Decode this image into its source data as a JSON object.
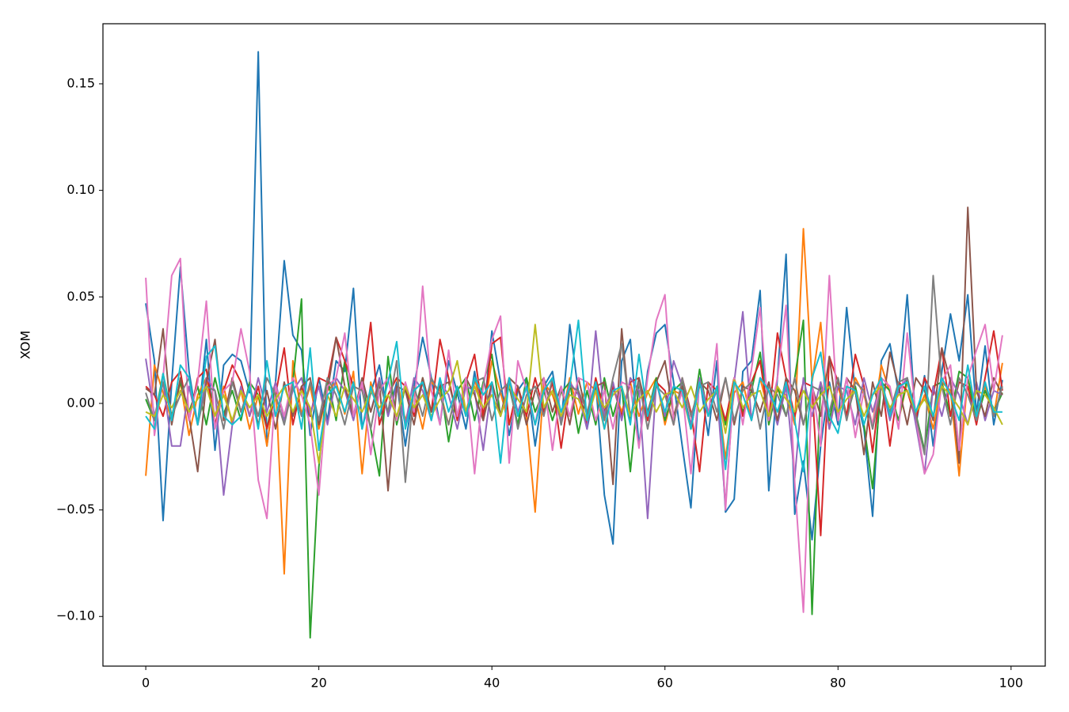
{
  "chart_data": {
    "type": "line",
    "y_label": "XOM",
    "xlim": [
      -4.95,
      103.95
    ],
    "ylim": [
      -0.1233,
      0.1782
    ],
    "xticks": [
      0,
      20,
      40,
      60,
      80,
      100
    ],
    "yticks": [
      {
        "value": -0.1,
        "label": "−0.10"
      },
      {
        "value": -0.05,
        "label": "−0.05"
      },
      {
        "value": 0,
        "label": "0.00"
      },
      0.05,
      {
        "value": 0.1,
        "label": "0.10"
      },
      0.15
    ],
    "x": [
      0,
      1,
      2,
      3,
      4,
      5,
      6,
      7,
      8,
      9,
      10,
      11,
      12,
      13,
      14,
      15,
      16,
      17,
      18,
      19,
      20,
      21,
      22,
      23,
      24,
      25,
      26,
      27,
      28,
      29,
      30,
      31,
      32,
      33,
      34,
      35,
      36,
      37,
      38,
      39,
      40,
      41,
      42,
      43,
      44,
      45,
      46,
      47,
      48,
      49,
      50,
      51,
      52,
      53,
      54,
      55,
      56,
      57,
      58,
      59,
      60,
      61,
      62,
      63,
      64,
      65,
      66,
      67,
      68,
      69,
      70,
      71,
      72,
      73,
      74,
      75,
      76,
      77,
      78,
      79,
      80,
      81,
      82,
      83,
      84,
      85,
      86,
      87,
      88,
      89,
      90,
      91,
      92,
      93,
      94,
      95,
      96,
      97,
      98,
      99
    ],
    "series": [
      {
        "color": "#1f77b4",
        "values": [
          0.047,
          0.02,
          -0.055,
          0.01,
          0.064,
          0.015,
          -0.01,
          0.03,
          -0.022,
          0.018,
          0.023,
          0.02,
          0.005,
          0.165,
          -0.02,
          0.01,
          0.067,
          0.032,
          0.025,
          -0.015,
          0.012,
          -0.008,
          0.02,
          0.015,
          0.054,
          -0.012,
          0.005,
          0.018,
          -0.006,
          0.01,
          -0.02,
          0.008,
          0.031,
          0.012,
          -0.01,
          0.02,
          0.005,
          -0.012,
          0.015,
          -0.008,
          0.034,
          0.01,
          -0.015,
          0.006,
          0.012,
          -0.02,
          0.008,
          0.015,
          -0.01,
          0.037,
          0.005,
          -0.012,
          0.01,
          -0.043,
          -0.066,
          0.02,
          0.03,
          -0.02,
          0.015,
          0.033,
          0.037,
          0.01,
          -0.02,
          -0.049,
          0.012,
          -0.015,
          0.02,
          -0.051,
          -0.045,
          0.015,
          0.02,
          0.053,
          -0.041,
          0.012,
          0.07,
          -0.052,
          -0.027,
          -0.064,
          -0.02,
          0.01,
          -0.01,
          0.045,
          0.005,
          -0.012,
          -0.053,
          0.02,
          0.028,
          0.005,
          0.051,
          -0.01,
          0.013,
          -0.02,
          0.015,
          0.042,
          0.02,
          0.051,
          -0.005,
          0.027,
          -0.01,
          0.011
        ]
      },
      {
        "color": "#ff7f0e",
        "values": [
          -0.034,
          0.018,
          0.005,
          -0.008,
          0.01,
          -0.015,
          0.004,
          0.012,
          -0.006,
          0.008,
          -0.01,
          0.006,
          -0.012,
          0.004,
          -0.02,
          0.01,
          -0.08,
          0.02,
          -0.005,
          0.008,
          -0.012,
          0.006,
          0.01,
          -0.005,
          0.015,
          -0.033,
          0.01,
          -0.006,
          0.004,
          0.012,
          -0.008,
          0.005,
          -0.012,
          0.01,
          0.006,
          -0.01,
          0.008,
          -0.004,
          0.012,
          -0.006,
          0.02,
          0.005,
          -0.01,
          0.008,
          -0.006,
          -0.051,
          0.01,
          0.004,
          -0.008,
          0.012,
          -0.005,
          0.01,
          0.006,
          -0.012,
          0.008,
          -0.004,
          0.01,
          -0.006,
          0.005,
          0.012,
          -0.01,
          0.006,
          0.004,
          -0.012,
          0.01,
          -0.006,
          0.008,
          -0.026,
          0.005,
          0.01,
          -0.008,
          0.012,
          -0.005,
          0.006,
          0.004,
          -0.01,
          0.082,
          0.01,
          0.038,
          -0.012,
          0.008,
          -0.006,
          0.012,
          0.004,
          -0.01,
          0.018,
          0.005,
          -0.008,
          0.01,
          -0.006,
          0.004,
          -0.012,
          0.01,
          0.006,
          -0.034,
          0.012,
          -0.005,
          0.008,
          -0.006,
          0.019
        ]
      },
      {
        "color": "#2ca02c",
        "values": [
          0.002,
          -0.008,
          0.014,
          -0.006,
          0.01,
          -0.004,
          0.008,
          -0.01,
          0.012,
          -0.005,
          0.006,
          -0.008,
          0.01,
          0.004,
          -0.012,
          0.008,
          -0.006,
          0.01,
          0.049,
          -0.11,
          -0.03,
          0.012,
          -0.008,
          0.02,
          -0.006,
          0.01,
          -0.012,
          -0.034,
          0.022,
          -0.01,
          0.008,
          -0.006,
          0.012,
          -0.004,
          0.01,
          -0.018,
          0.006,
          0.012,
          -0.008,
          0.01,
          0.023,
          -0.006,
          0.008,
          -0.01,
          0.012,
          -0.004,
          0.006,
          -0.008,
          0.005,
          0.01,
          -0.014,
          0.006,
          -0.01,
          0.012,
          -0.006,
          0.008,
          -0.032,
          0.01,
          -0.005,
          0.012,
          -0.008,
          0.006,
          0.01,
          -0.012,
          0.016,
          -0.006,
          0.008,
          -0.01,
          0.012,
          -0.004,
          0.006,
          0.024,
          -0.01,
          0.008,
          -0.006,
          0.012,
          0.039,
          -0.099,
          0.01,
          -0.008,
          0.012,
          -0.006,
          0.008,
          -0.01,
          -0.04,
          0.01,
          0.006,
          -0.008,
          0.012,
          -0.005,
          -0.022,
          0.008,
          0.01,
          -0.006,
          0.015,
          0.012,
          -0.008,
          0.006,
          -0.004,
          0.005
        ]
      },
      {
        "color": "#d62728",
        "values": [
          0.008,
          0.004,
          -0.006,
          0.01,
          0.015,
          -0.008,
          0.012,
          0.016,
          -0.01,
          0.006,
          0.018,
          0.01,
          -0.006,
          0.008,
          -0.012,
          0.004,
          0.026,
          -0.01,
          0.008,
          -0.006,
          0.012,
          0.01,
          0.031,
          0.02,
          0.008,
          0.006,
          0.038,
          -0.01,
          0.004,
          0.012,
          0.008,
          -0.006,
          0.01,
          -0.004,
          0.03,
          0.012,
          -0.008,
          0.01,
          0.023,
          -0.006,
          0.028,
          0.031,
          -0.01,
          0.008,
          -0.006,
          0.012,
          -0.004,
          0.01,
          -0.021,
          0.008,
          0.006,
          -0.01,
          0.012,
          -0.004,
          0.008,
          -0.006,
          0.01,
          0.012,
          -0.008,
          0.01,
          0.006,
          -0.01,
          0.012,
          -0.004,
          -0.032,
          0.01,
          0.006,
          -0.008,
          0.012,
          -0.006,
          0.01,
          0.02,
          -0.008,
          0.033,
          0.012,
          -0.006,
          0.01,
          0.008,
          -0.062,
          0.022,
          0.01,
          -0.006,
          0.023,
          0.008,
          -0.023,
          0.012,
          -0.02,
          0.01,
          0.006,
          -0.008,
          0.012,
          0.004,
          0.026,
          -0.006,
          0.01,
          0.008,
          -0.01,
          0.012,
          0.034,
          0.006
        ]
      },
      {
        "color": "#9467bd",
        "values": [
          0.021,
          -0.006,
          0.01,
          -0.02,
          -0.02,
          0.008,
          -0.01,
          0.012,
          0.006,
          -0.043,
          -0.01,
          0.008,
          -0.006,
          0.012,
          -0.004,
          0.01,
          -0.008,
          0.006,
          0.012,
          -0.005,
          0.008,
          -0.01,
          0.012,
          0.006,
          -0.008,
          0.01,
          -0.004,
          0.012,
          -0.006,
          0.008,
          -0.01,
          0.012,
          0.006,
          -0.008,
          0.01,
          0.004,
          -0.012,
          0.008,
          0.006,
          -0.022,
          0.01,
          -0.006,
          0.012,
          -0.004,
          0.008,
          -0.01,
          0.006,
          0.012,
          -0.008,
          0.01,
          0.004,
          -0.012,
          0.034,
          -0.006,
          0.01,
          -0.008,
          0.012,
          0.006,
          -0.054,
          0.01,
          -0.006,
          0.02,
          0.008,
          -0.01,
          0.012,
          -0.004,
          0.006,
          -0.048,
          0.01,
          0.043,
          -0.008,
          0.012,
          0.006,
          -0.01,
          0.008,
          -0.035,
          0.012,
          -0.006,
          0.01,
          -0.012,
          0.008,
          0.006,
          -0.01,
          0.012,
          -0.004,
          0.01,
          -0.008,
          0.006,
          0.012,
          -0.01,
          -0.033,
          0.008,
          -0.006,
          0.012,
          0.004,
          -0.01,
          0.01,
          -0.008,
          0.006,
          0.004
        ]
      },
      {
        "color": "#8c564b",
        "values": [
          0.007,
          0.004,
          0.035,
          -0.01,
          0.012,
          -0.006,
          -0.032,
          0.01,
          0.03,
          -0.008,
          0.012,
          -0.004,
          0.008,
          -0.01,
          0.006,
          -0.012,
          0.01,
          -0.006,
          0.008,
          0.012,
          -0.01,
          0.006,
          0.031,
          0.008,
          -0.006,
          0.012,
          -0.004,
          0.01,
          -0.041,
          0.008,
          0.006,
          -0.01,
          0.012,
          -0.004,
          0.008,
          0.01,
          -0.006,
          0.012,
          0.004,
          -0.008,
          0.01,
          -0.006,
          0.012,
          0.008,
          -0.01,
          0.006,
          0.012,
          -0.004,
          0.008,
          -0.01,
          0.012,
          -0.006,
          0.008,
          0.01,
          -0.038,
          0.035,
          -0.008,
          0.012,
          -0.004,
          0.01,
          0.02,
          -0.006,
          0.008,
          -0.012,
          0.01,
          0.006,
          -0.008,
          0.012,
          -0.01,
          0.008,
          0.006,
          -0.004,
          0.01,
          -0.008,
          0.012,
          0.006,
          -0.01,
          0.008,
          -0.006,
          0.022,
          -0.008,
          0.012,
          0.006,
          -0.024,
          0.01,
          -0.006,
          0.024,
          0.008,
          -0.01,
          0.012,
          0.006,
          -0.008,
          0.026,
          0.01,
          -0.028,
          0.092,
          0.006,
          -0.006,
          0.012,
          0.004
        ]
      },
      {
        "color": "#e377c2",
        "values": [
          0.059,
          -0.015,
          0.012,
          0.06,
          0.068,
          -0.008,
          0.01,
          0.048,
          -0.012,
          0.006,
          0.01,
          0.035,
          0.015,
          -0.036,
          -0.054,
          0.008,
          -0.006,
          0.012,
          0.004,
          -0.01,
          -0.043,
          0.008,
          0.012,
          0.033,
          -0.006,
          0.01,
          -0.024,
          0.006,
          0.012,
          -0.008,
          0.01,
          -0.004,
          0.055,
          0.006,
          -0.01,
          0.025,
          -0.006,
          0.012,
          -0.033,
          0.008,
          0.03,
          0.041,
          -0.028,
          0.02,
          0.006,
          -0.01,
          0.012,
          -0.022,
          0.008,
          -0.006,
          0.012,
          0.01,
          -0.008,
          0.006,
          -0.012,
          0.01,
          0.008,
          -0.021,
          0.012,
          0.039,
          0.051,
          -0.008,
          0.006,
          -0.033,
          0.01,
          -0.006,
          0.028,
          -0.05,
          0.012,
          -0.01,
          0.016,
          0.045,
          -0.008,
          0.012,
          0.046,
          -0.037,
          -0.098,
          0.01,
          -0.02,
          0.06,
          -0.008,
          0.012,
          -0.016,
          0.006,
          -0.01,
          0.012,
          0.008,
          -0.012,
          0.033,
          -0.006,
          -0.033,
          -0.024,
          0.01,
          0.018,
          -0.022,
          0.012,
          0.025,
          0.037,
          0.006,
          0.032
        ]
      },
      {
        "color": "#7f7f7f",
        "values": [
          0.005,
          -0.008,
          0.01,
          -0.006,
          0.004,
          0.012,
          -0.01,
          0.008,
          0.006,
          -0.012,
          0.01,
          -0.004,
          0.008,
          -0.006,
          0.012,
          0.004,
          -0.01,
          0.008,
          -0.006,
          0.01,
          -0.008,
          0.012,
          0.004,
          -0.01,
          0.008,
          0.006,
          -0.012,
          0.01,
          -0.004,
          0.02,
          -0.037,
          0.008,
          -0.006,
          0.012,
          0.004,
          -0.01,
          0.008,
          -0.006,
          0.01,
          0.012,
          -0.008,
          0.006,
          0.01,
          -0.012,
          0.004,
          0.008,
          -0.006,
          0.012,
          -0.01,
          0.008,
          0.006,
          -0.004,
          0.01,
          -0.008,
          0.012,
          0.028,
          -0.006,
          0.01,
          -0.012,
          0.008,
          0.004,
          -0.01,
          0.012,
          -0.006,
          0.008,
          0.01,
          -0.004,
          0.012,
          -0.008,
          0.006,
          0.01,
          -0.012,
          0.008,
          0.004,
          -0.006,
          0.012,
          -0.01,
          0.008,
          0.006,
          -0.004,
          0.012,
          -0.008,
          0.01,
          0.006,
          -0.012,
          0.008,
          -0.004,
          0.01,
          0.012,
          -0.006,
          -0.024,
          0.06,
          0.008,
          -0.01,
          0.012,
          0.004,
          -0.008,
          0.01,
          -0.006,
          0.008
        ]
      },
      {
        "color": "#bcbd22",
        "values": [
          -0.004,
          -0.006,
          0.004,
          -0.002,
          0.006,
          -0.004,
          0.002,
          0.008,
          -0.006,
          0.004,
          -0.008,
          0.006,
          -0.002,
          0.004,
          -0.006,
          0.002,
          0.008,
          -0.004,
          0.006,
          -0.002,
          -0.028,
          0.004,
          -0.006,
          0.008,
          0.002,
          -0.004,
          0.006,
          -0.002,
          0.004,
          -0.006,
          0.008,
          -0.002,
          0.004,
          -0.006,
          0.002,
          0.006,
          0.02,
          -0.004,
          0.008,
          -0.002,
          0.004,
          -0.006,
          0.008,
          0.002,
          -0.004,
          0.037,
          -0.002,
          0.006,
          -0.006,
          0.004,
          0.002,
          -0.008,
          0.006,
          -0.002,
          0.004,
          0.008,
          -0.006,
          0.002,
          0.006,
          -0.004,
          0.004,
          0.006,
          -0.002,
          0.008,
          -0.004,
          0.002,
          0.006,
          -0.014,
          0.011,
          -0.002,
          0.004,
          0.006,
          -0.006,
          0.008,
          0.002,
          -0.004,
          0.006,
          -0.002,
          0.004,
          0.008,
          -0.004,
          0.002,
          0.006,
          -0.006,
          0.004,
          0.008,
          -0.002,
          0.004,
          0.006,
          -0.004,
          0.002,
          -0.006,
          0.008,
          0.004,
          -0.002,
          -0.01,
          0.006,
          0.004,
          -0.002,
          -0.01
        ]
      },
      {
        "color": "#17becf",
        "values": [
          -0.006,
          -0.012,
          0.014,
          -0.008,
          0.018,
          0.012,
          -0.01,
          0.022,
          0.027,
          -0.006,
          -0.01,
          -0.006,
          0.008,
          -0.012,
          0.02,
          -0.006,
          0.008,
          0.01,
          -0.012,
          0.026,
          -0.022,
          0.004,
          0.008,
          -0.004,
          0.01,
          -0.012,
          0.008,
          -0.006,
          0.01,
          0.029,
          -0.012,
          0.006,
          0.01,
          -0.008,
          0.012,
          -0.004,
          0.008,
          -0.006,
          0.012,
          0.004,
          0.01,
          -0.028,
          0.012,
          -0.006,
          0.008,
          -0.01,
          0.006,
          0.012,
          -0.004,
          0.008,
          0.039,
          -0.008,
          0.01,
          -0.012,
          0.006,
          0.008,
          -0.01,
          0.023,
          -0.006,
          0.01,
          -0.004,
          0.008,
          0.006,
          -0.012,
          0.01,
          -0.006,
          0.008,
          -0.031,
          0.01,
          0.004,
          -0.008,
          0.012,
          0.006,
          -0.004,
          0.01,
          -0.008,
          -0.032,
          0.012,
          0.024,
          -0.006,
          -0.014,
          0.008,
          0.006,
          -0.01,
          0.004,
          0.012,
          -0.006,
          0.008,
          0.01,
          -0.004,
          0.008,
          -0.006,
          0.012,
          0.004,
          -0.008,
          0.018,
          -0.006,
          0.01,
          -0.004,
          -0.004
        ]
      }
    ]
  }
}
